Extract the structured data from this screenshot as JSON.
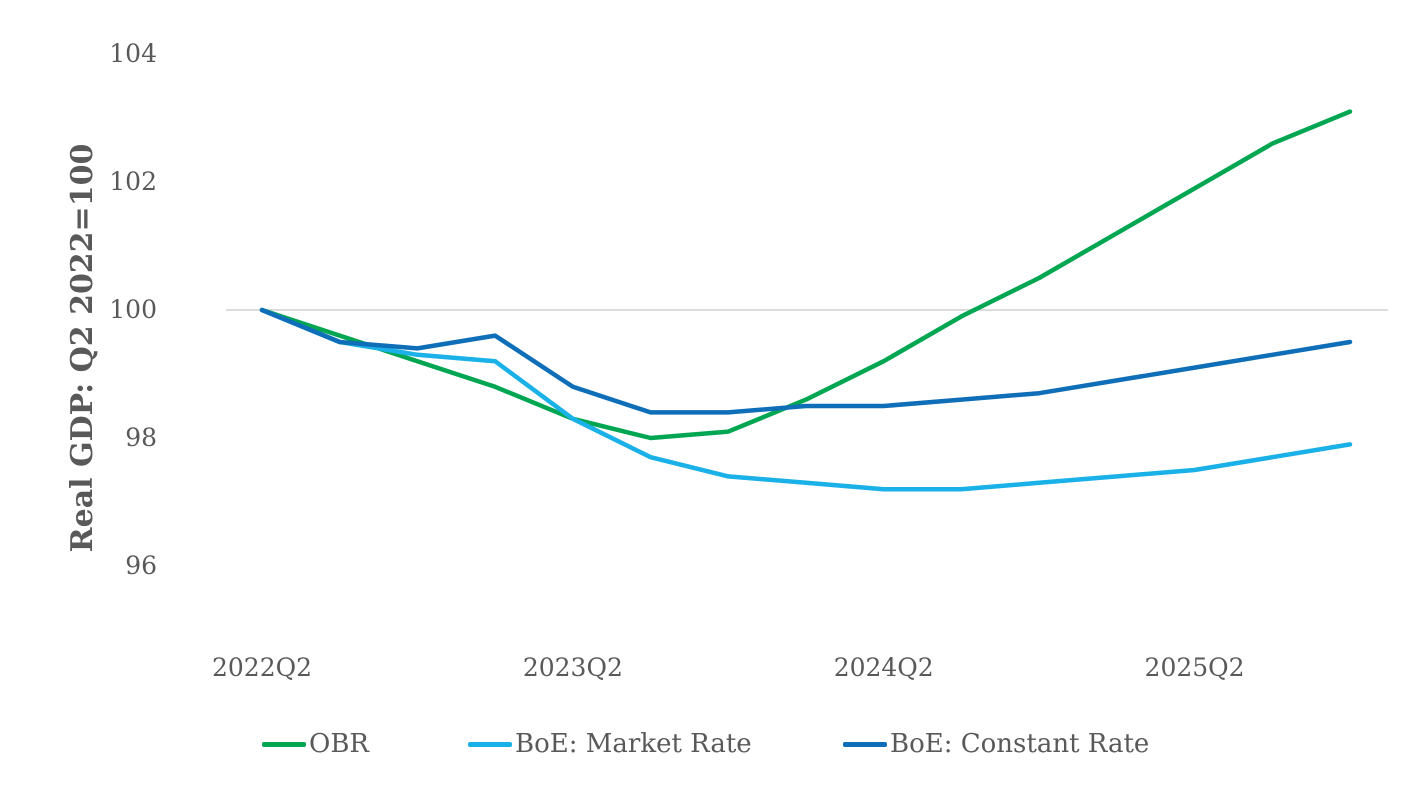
{
  "chart_data": {
    "type": "line",
    "title": "",
    "ylabel": "Real GDP: Q2 2022=100",
    "xlabel": "",
    "ylim": [
      95,
      104
    ],
    "yticks": [
      96,
      98,
      100,
      102,
      104
    ],
    "ytick_labels": [
      "96",
      "98",
      "100",
      "102",
      "104"
    ],
    "reference_line": 100,
    "x": [
      "2022Q2",
      "2022Q3",
      "2022Q4",
      "2023Q1",
      "2023Q2",
      "2023Q3",
      "2023Q4",
      "2024Q1",
      "2024Q2",
      "2024Q3",
      "2024Q4",
      "2025Q1",
      "2025Q2",
      "2025Q3",
      "2025Q4"
    ],
    "xtick_labels": [
      "2022Q2",
      "2023Q2",
      "2024Q2",
      "2025Q2"
    ],
    "grid": false,
    "legend_position": "bottom",
    "series": [
      {
        "name": "OBR",
        "color": "#00A651",
        "x": [
          "2022Q2",
          "2022Q3",
          "2022Q4",
          "2023Q1",
          "2023Q2",
          "2023Q3",
          "2023Q4",
          "2024Q1",
          "2024Q2",
          "2024Q3",
          "2024Q4",
          "2025Q1",
          "2025Q2",
          "2025Q3",
          "2025Q4"
        ],
        "values": [
          100.0,
          99.6,
          99.2,
          98.8,
          98.3,
          98.0,
          98.1,
          98.6,
          99.2,
          99.9,
          100.5,
          101.2,
          101.9,
          102.6,
          103.1
        ]
      },
      {
        "name": "BoE: Market Rate",
        "color": "#1AB0E8",
        "x": [
          "2022Q2",
          "2022Q3",
          "2022Q4",
          "2023Q1",
          "2023Q2",
          "2023Q3",
          "2023Q4",
          "2024Q1",
          "2024Q2",
          "2024Q3",
          "2024Q4",
          "2025Q1",
          "2025Q2",
          "2025Q3",
          "2025Q4"
        ],
        "values": [
          100.0,
          99.5,
          99.3,
          99.2,
          98.3,
          97.7,
          97.4,
          97.3,
          97.2,
          97.2,
          97.3,
          97.4,
          97.5,
          97.7,
          97.9
        ]
      },
      {
        "name": "BoE: Constant Rate",
        "color": "#0E6EB8",
        "x": [
          "2022Q2",
          "2022Q3",
          "2022Q4",
          "2023Q1",
          "2023Q2",
          "2023Q3",
          "2023Q4",
          "2024Q1",
          "2024Q2",
          "2024Q3",
          "2024Q4",
          "2025Q1",
          "2025Q2",
          "2025Q3",
          "2025Q4"
        ],
        "values": [
          100.0,
          99.5,
          99.4,
          99.6,
          98.8,
          98.4,
          98.4,
          98.5,
          98.5,
          98.6,
          98.7,
          98.9,
          99.1,
          99.3,
          99.5
        ]
      }
    ]
  }
}
